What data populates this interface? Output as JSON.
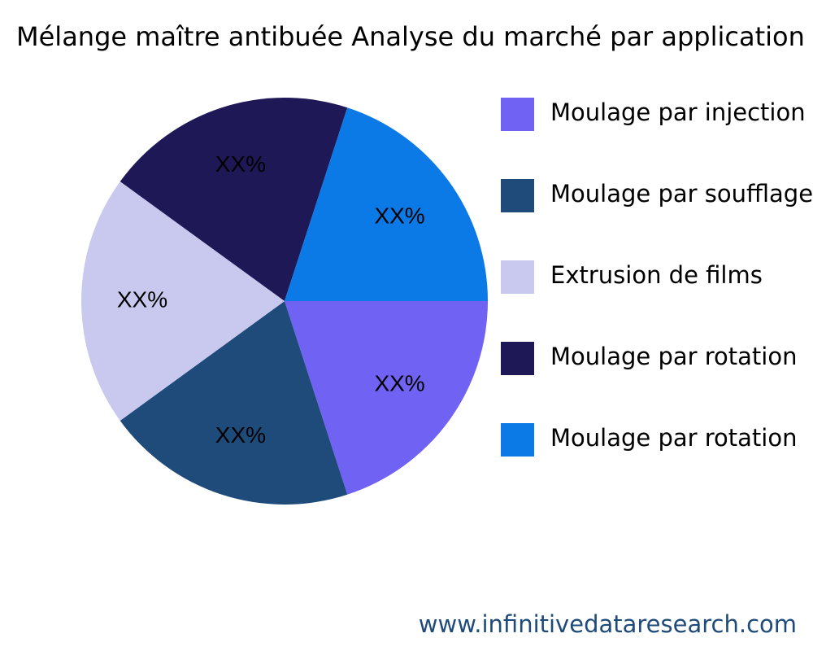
{
  "chart_data": {
    "type": "pie",
    "title": "Mélange maître antibuée Analyse du marché par application",
    "categories": [
      "Moulage par injection",
      "Moulage par soufflage",
      "Extrusion de films",
      "Moulage par rotation",
      "Moulage par rotation"
    ],
    "values": [
      20,
      20,
      20,
      20,
      20
    ],
    "value_labels": [
      "XX%",
      "XX%",
      "XX%",
      "XX%",
      "XX%"
    ],
    "colors": [
      "#7062f2",
      "#1f4b7a",
      "#c9c9f0",
      "#1e1856",
      "#0b7ae6"
    ],
    "legend": "right",
    "watermark": "www.infinitivedataresearch.com"
  }
}
